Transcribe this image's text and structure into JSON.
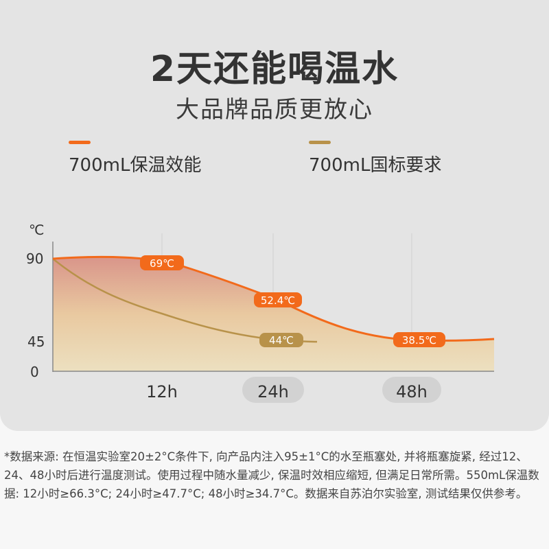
{
  "headline": "2天还能喝温水",
  "subheadline": "大品牌品质更放心",
  "colors": {
    "series1": "#f26a1b",
    "series2": "#b8924a",
    "pill": "#d2d2d2",
    "background": "#e4e4e4"
  },
  "chart_data": {
    "type": "line",
    "ylabel": "℃",
    "yticks": [
      "90",
      "45",
      "0"
    ],
    "categories": [
      "12h",
      "24h",
      "48h"
    ],
    "highlighted_categories": [
      "24h",
      "48h"
    ],
    "legend_position": "top",
    "grid": true,
    "series": [
      {
        "name": "700mL保温效能",
        "x": [
          "0h",
          "12h",
          "24h",
          "48h"
        ],
        "values": [
          90,
          69,
          52.4,
          38.5
        ],
        "labels": [
          "69℃",
          "52.4℃",
          "38.5℃"
        ]
      },
      {
        "name": "700mL国标要求",
        "x": [
          "0h",
          "24h"
        ],
        "values": [
          90,
          44
        ],
        "labels": [
          "44℃"
        ]
      }
    ]
  },
  "footnote": "*数据来源: 在恒温实验室20±2°C条件下, 向产品内注入95±1°C的水至瓶塞处, 并将瓶塞旋紧, 经过12、24、48小时后进行温度测试。使用过程中随水量减少, 保温时效相应缩短, 但满足日常所需。550mL保温数据: 12小时≥66.3°C; 24小时≥47.7°C; 48小时≥34.7°C。数据来自苏泊尔实验室, 测试结果仅供参考。"
}
